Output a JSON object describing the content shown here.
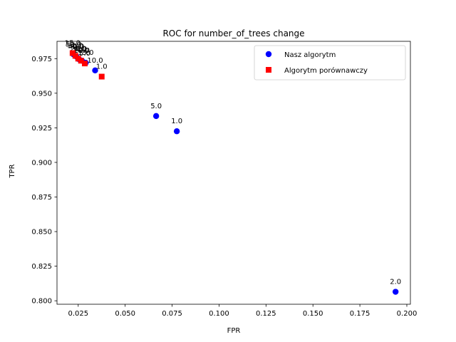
{
  "chart_data": {
    "type": "scatter",
    "title": "ROC for number_of_trees change",
    "xlabel": "FPR",
    "ylabel": "TPR",
    "xlim": [
      0.0137,
      0.2019
    ],
    "ylim": [
      0.7975,
      0.9875
    ],
    "xticks": [
      0.025,
      0.05,
      0.075,
      0.1,
      0.125,
      0.15,
      0.175,
      0.2
    ],
    "xtick_labels": [
      "0.025",
      "0.050",
      "0.075",
      "0.100",
      "0.125",
      "0.150",
      "0.175",
      "0.200"
    ],
    "yticks": [
      0.8,
      0.825,
      0.85,
      0.875,
      0.9,
      0.925,
      0.95,
      0.975
    ],
    "ytick_labels": [
      "0.800",
      "0.825",
      "0.850",
      "0.875",
      "0.900",
      "0.925",
      "0.950",
      "0.975"
    ],
    "grid": false,
    "legend_position": "top-right",
    "series": [
      {
        "name": "Nasz algorytm",
        "marker": "circle",
        "color": "#0000ff",
        "points": [
          {
            "x": 0.194,
            "y": 0.8065,
            "label": "2.0"
          },
          {
            "x": 0.0775,
            "y": 0.9225,
            "label": "1.0"
          },
          {
            "x": 0.0665,
            "y": 0.9335,
            "label": "5.0"
          },
          {
            "x": 0.034,
            "y": 0.9665,
            "label": "10.0"
          },
          {
            "x": 0.029,
            "y": 0.972,
            "label": "15.0"
          },
          {
            "x": 0.027,
            "y": 0.9735,
            "label": "20.0"
          },
          {
            "x": 0.0255,
            "y": 0.9745,
            "label": "30.0"
          },
          {
            "x": 0.024,
            "y": 0.9765,
            "label": "40.0"
          },
          {
            "x": 0.0225,
            "y": 0.978,
            "label": "50.0"
          }
        ]
      },
      {
        "name": "Algorytm porównawczy",
        "marker": "square",
        "color": "#ff0000",
        "points": [
          {
            "x": 0.0375,
            "y": 0.962,
            "label": "1.0"
          },
          {
            "x": 0.0285,
            "y": 0.9715,
            "label": "5.0"
          },
          {
            "x": 0.0265,
            "y": 0.9735,
            "label": "10.0"
          },
          {
            "x": 0.025,
            "y": 0.975,
            "label": "20.0"
          },
          {
            "x": 0.0235,
            "y": 0.977,
            "label": "30.0"
          },
          {
            "x": 0.022,
            "y": 0.979,
            "label": "15.0"
          }
        ]
      }
    ]
  }
}
